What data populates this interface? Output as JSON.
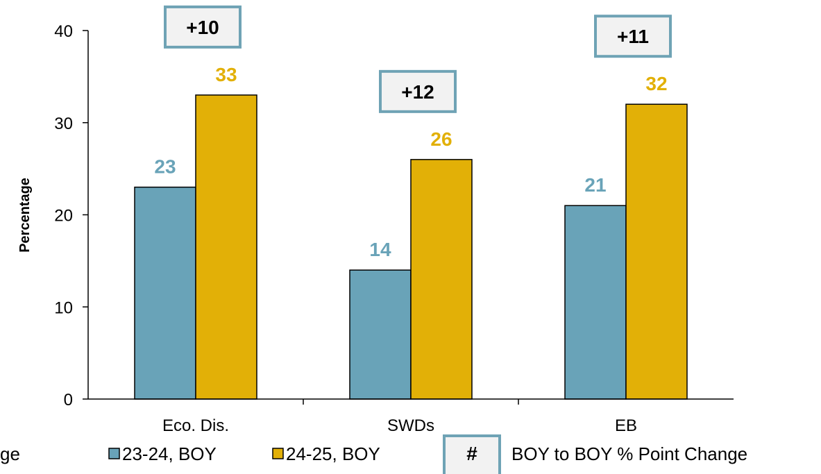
{
  "chart_data": {
    "type": "bar",
    "categories": [
      "Eco. Dis.",
      "SWDs",
      "EB"
    ],
    "series": [
      {
        "name": "23-24, BOY",
        "values": [
          23,
          14,
          21
        ],
        "color": "#69A3B8"
      },
      {
        "name": "24-25, BOY",
        "values": [
          33,
          26,
          32
        ],
        "color": "#E2B007"
      }
    ],
    "changes": [
      "+10",
      "+12",
      "+11"
    ],
    "ylabel": "Percentage",
    "xlabel": "",
    "ylim": [
      0,
      40
    ],
    "yticks": [
      0,
      10,
      20,
      30,
      40
    ],
    "legend": {
      "cut_text": "ge",
      "change_marker": "#",
      "change_label": "BOY to BOY % Point Change",
      "placement": "bottom"
    },
    "change_box_color": "#6FA3B5",
    "grid": false
  }
}
